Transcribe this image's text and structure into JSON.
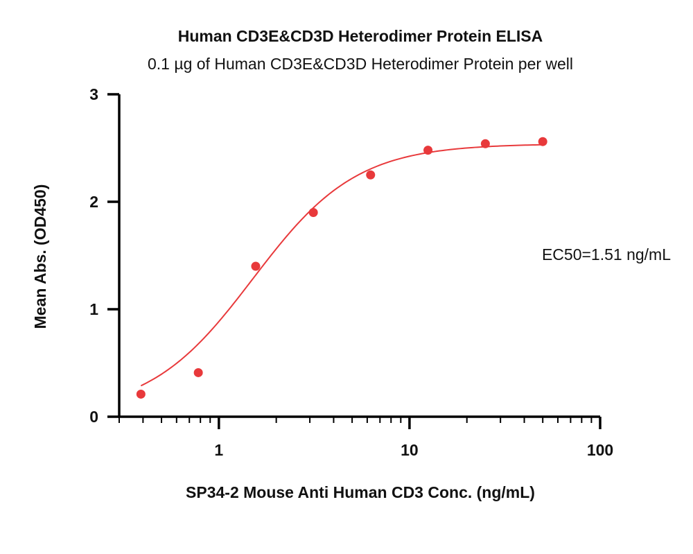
{
  "chart_data": {
    "type": "scatter",
    "title": "Human CD3E&CD3D Heterodimer Protein ELISA",
    "subtitle": "0.1 µg of Human CD3E&CD3D Heterodimer Protein per well",
    "xlabel": "SP34-2 Mouse Anti Human CD3 Conc. (ng/mL)",
    "ylabel": "Mean Abs. (OD450)",
    "x_scale": "log",
    "xlim": [
      0.3,
      100
    ],
    "ylim": [
      0,
      3
    ],
    "x_ticks": [
      {
        "value": 1,
        "label": "1"
      },
      {
        "value": 10,
        "label": "10"
      },
      {
        "value": 100,
        "label": "100"
      }
    ],
    "y_ticks": [
      {
        "value": 0,
        "label": "0"
      },
      {
        "value": 1,
        "label": "1"
      },
      {
        "value": 2,
        "label": "2"
      },
      {
        "value": 3,
        "label": "3"
      }
    ],
    "grid": false,
    "color": "#e8393b",
    "series": [
      {
        "x": [
          0.39,
          0.78,
          1.56,
          3.13,
          6.25,
          12.5,
          25,
          50
        ],
        "y": [
          0.21,
          0.41,
          1.4,
          1.9,
          2.25,
          2.48,
          2.54,
          2.56
        ]
      }
    ],
    "fit": {
      "model": "4PL",
      "bottom": 0.03,
      "top": 2.54,
      "ec50": 1.51,
      "hill": 1.6
    },
    "annotation": "EC50=1.51 ng/mL"
  }
}
